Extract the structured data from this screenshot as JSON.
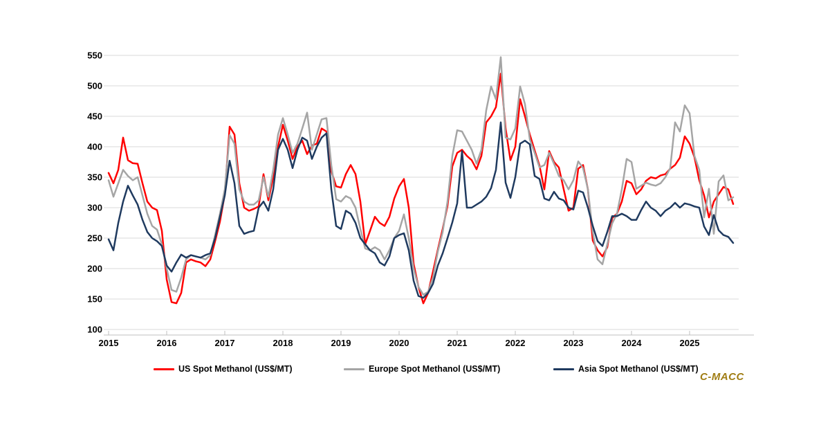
{
  "page": {
    "background": "#FFFFFF"
  },
  "watermark": {
    "text": "C-MACC",
    "color": "#A07D14"
  },
  "axis_style": {
    "grid_color": "#D9D9D9",
    "axis_color": "#BFBFBF",
    "label_color": "#000000"
  },
  "chart_data": {
    "type": "line",
    "title": "",
    "xlabel": "",
    "ylabel": "",
    "ylim": [
      100,
      550
    ],
    "y_ticks": [
      100,
      150,
      200,
      250,
      300,
      350,
      400,
      450,
      500,
      550
    ],
    "x_tick_labels": [
      "2015",
      "2016",
      "2017",
      "2018",
      "2019",
      "2020",
      "2021",
      "2022",
      "2023",
      "2024",
      "2025"
    ],
    "x_start_year": 2015,
    "x_resolution": "monthly",
    "grid": true,
    "legend_position": "bottom",
    "series": [
      {
        "name": "US Spot Methanol (US$/MT)",
        "color": "#FF0000",
        "values": [
          357,
          340,
          362,
          415,
          378,
          373,
          372,
          340,
          310,
          300,
          296,
          262,
          182,
          145,
          143,
          160,
          210,
          215,
          212,
          210,
          204,
          215,
          245,
          277,
          322,
          433,
          420,
          340,
          300,
          295,
          298,
          302,
          355,
          312,
          350,
          400,
          436,
          410,
          380,
          400,
          410,
          388,
          402,
          405,
          430,
          425,
          360,
          335,
          333,
          355,
          370,
          355,
          310,
          240,
          262,
          285,
          275,
          270,
          285,
          315,
          335,
          347,
          300,
          208,
          170,
          143,
          160,
          195,
          231,
          265,
          303,
          368,
          390,
          395,
          385,
          378,
          363,
          385,
          440,
          450,
          465,
          520,
          430,
          378,
          400,
          478,
          450,
          420,
          394,
          369,
          330,
          393,
          375,
          366,
          330,
          295,
          300,
          364,
          370,
          330,
          246,
          230,
          220,
          235,
          283,
          290,
          310,
          344,
          340,
          322,
          330,
          344,
          350,
          348,
          353,
          355,
          364,
          370,
          382,
          417,
          405,
          383,
          345,
          320,
          284,
          310,
          322,
          334,
          330,
          306
        ]
      },
      {
        "name": "Europe Spot Methanol (US$/MT)",
        "color": "#A5A5A5",
        "values": [
          345,
          318,
          340,
          362,
          352,
          345,
          350,
          320,
          290,
          270,
          264,
          240,
          200,
          165,
          162,
          185,
          215,
          222,
          220,
          218,
          215,
          222,
          255,
          290,
          330,
          419,
          405,
          330,
          310,
          305,
          305,
          312,
          350,
          318,
          362,
          420,
          447,
          420,
          390,
          405,
          430,
          456,
          395,
          420,
          445,
          447,
          370,
          314,
          310,
          319,
          315,
          300,
          265,
          233,
          230,
          235,
          230,
          215,
          230,
          250,
          262,
          289,
          250,
          200,
          170,
          157,
          162,
          185,
          228,
          260,
          310,
          385,
          427,
          425,
          410,
          395,
          372,
          395,
          460,
          499,
          478,
          547,
          415,
          412,
          430,
          499,
          470,
          412,
          390,
          366,
          370,
          390,
          372,
          352,
          345,
          330,
          345,
          376,
          365,
          330,
          260,
          215,
          207,
          240,
          274,
          290,
          330,
          380,
          375,
          331,
          336,
          341,
          338,
          336,
          340,
          350,
          365,
          440,
          425,
          468,
          455,
          385,
          362,
          284,
          331,
          257,
          343,
          353,
          312,
          317
        ]
      },
      {
        "name": "Asia Spot Methanol (US$/MT)",
        "color": "#1F3A5F",
        "values": [
          248,
          230,
          275,
          310,
          336,
          320,
          305,
          280,
          260,
          250,
          245,
          237,
          205,
          195,
          210,
          223,
          218,
          222,
          220,
          218,
          222,
          225,
          250,
          285,
          320,
          377,
          340,
          270,
          257,
          260,
          262,
          300,
          310,
          295,
          330,
          395,
          413,
          395,
          365,
          395,
          415,
          410,
          380,
          400,
          415,
          422,
          330,
          270,
          265,
          295,
          290,
          275,
          250,
          240,
          230,
          225,
          210,
          205,
          220,
          250,
          255,
          258,
          230,
          180,
          155,
          152,
          160,
          175,
          205,
          225,
          250,
          276,
          307,
          393,
          300,
          300,
          305,
          310,
          318,
          332,
          362,
          440,
          341,
          316,
          350,
          405,
          410,
          404,
          352,
          347,
          315,
          312,
          326,
          315,
          312,
          300,
          297,
          328,
          325,
          300,
          270,
          245,
          237,
          260,
          286,
          286,
          290,
          286,
          280,
          280,
          296,
          310,
          300,
          295,
          286,
          295,
          300,
          308,
          300,
          307,
          305,
          302,
          300,
          269,
          255,
          288,
          263,
          255,
          252,
          242
        ]
      }
    ]
  }
}
